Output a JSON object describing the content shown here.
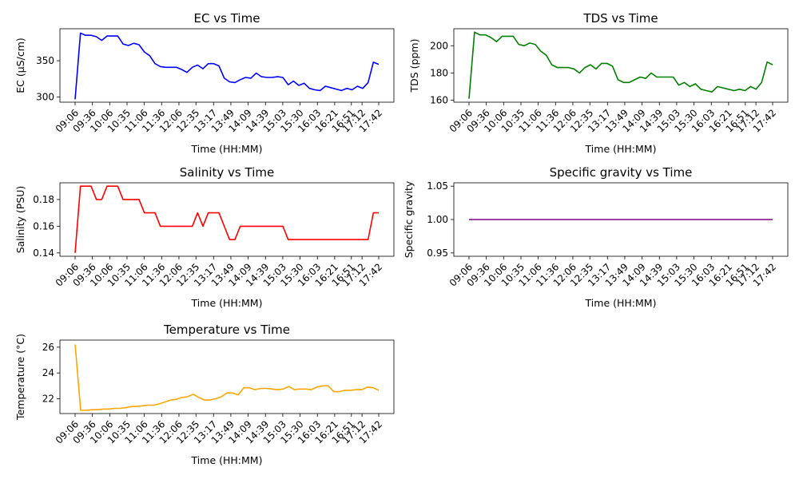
{
  "chart_data": [
    {
      "type": "line",
      "title": "EC vs Time",
      "xlabel": "Time (HH:MM)",
      "ylabel": "EC (µS/cm)",
      "color": "#0000ff",
      "ylim": [
        293,
        394
      ],
      "yticks": [
        300,
        350
      ],
      "series": [
        {
          "values": [
            297,
            388,
            385,
            385,
            383,
            378,
            384,
            384,
            384,
            373,
            371,
            374,
            372,
            362,
            357,
            346,
            342,
            341,
            341,
            341,
            338,
            334,
            341,
            344,
            339,
            346,
            346,
            343,
            326,
            321,
            320,
            324,
            327,
            326,
            333,
            328,
            327,
            327,
            328,
            327,
            317,
            322,
            316,
            319,
            312,
            310,
            309,
            315,
            313,
            311,
            309,
            312,
            310,
            315,
            312,
            320,
            348,
            345
          ]
        }
      ]
    },
    {
      "type": "line",
      "title": "TDS vs Time",
      "xlabel": "Time (HH:MM)",
      "ylabel": "TDS (ppm)",
      "color": "#008000",
      "ylim": [
        158.5,
        212.5
      ],
      "yticks": [
        160,
        180,
        200
      ],
      "series": [
        {
          "values": [
            161,
            210,
            208,
            208,
            206,
            203,
            207,
            207,
            207,
            201,
            200,
            202,
            201,
            196,
            193,
            186,
            184,
            184,
            184,
            183,
            180,
            184,
            186,
            183,
            187,
            187,
            185,
            175,
            173,
            173,
            175,
            177,
            176,
            180,
            177,
            177,
            177,
            177,
            171,
            173,
            170,
            172,
            168,
            167,
            166,
            170,
            169,
            168,
            167,
            168,
            167,
            170,
            168,
            173,
            188,
            186
          ]
        }
      ]
    },
    {
      "type": "line",
      "title": "Salinity vs Time",
      "xlabel": "Time (HH:MM)",
      "ylabel": "Salinity (PSU)",
      "color": "#ff0000",
      "ylim": [
        0.1375,
        0.1925
      ],
      "yticks": [
        0.14,
        0.16,
        0.18
      ],
      "series": [
        {
          "values": [
            0.14,
            0.19,
            0.19,
            0.19,
            0.18,
            0.18,
            0.19,
            0.19,
            0.19,
            0.18,
            0.18,
            0.18,
            0.18,
            0.17,
            0.17,
            0.17,
            0.16,
            0.16,
            0.16,
            0.16,
            0.16,
            0.16,
            0.16,
            0.17,
            0.16,
            0.17,
            0.17,
            0.17,
            0.16,
            0.15,
            0.15,
            0.16,
            0.16,
            0.16,
            0.16,
            0.16,
            0.16,
            0.16,
            0.16,
            0.16,
            0.15,
            0.15,
            0.15,
            0.15,
            0.15,
            0.15,
            0.15,
            0.15,
            0.15,
            0.15,
            0.15,
            0.15,
            0.15,
            0.15,
            0.15,
            0.15,
            0.17,
            0.17
          ]
        }
      ]
    },
    {
      "type": "line",
      "title": "Specific gravity vs Time",
      "xlabel": "Time (HH:MM)",
      "ylabel": "Specific gravity",
      "color": "#800080",
      "ylim": [
        0.945,
        1.055
      ],
      "yticks": [
        0.95,
        1.0,
        1.05
      ],
      "series": [
        {
          "values": [
            1.0,
            1.0,
            1.0,
            1.0,
            1.0,
            1.0,
            1.0,
            1.0,
            1.0,
            1.0,
            1.0,
            1.0,
            1.0,
            1.0,
            1.0,
            1.0,
            1.0,
            1.0,
            1.0,
            1.0,
            1.0,
            1.0,
            1.0,
            1.0,
            1.0,
            1.0,
            1.0,
            1.0,
            1.0,
            1.0,
            1.0,
            1.0,
            1.0,
            1.0,
            1.0,
            1.0,
            1.0,
            1.0,
            1.0,
            1.0,
            1.0,
            1.0,
            1.0,
            1.0,
            1.0,
            1.0,
            1.0,
            1.0,
            1.0,
            1.0,
            1.0,
            1.0,
            1.0,
            1.0,
            1.0,
            1.0,
            1.0,
            1.0
          ]
        }
      ]
    },
    {
      "type": "line",
      "title": "Temperature vs Time",
      "xlabel": "Time (HH:MM)",
      "ylabel": "Temperature (°C)",
      "color": "#ffa500",
      "ylim": [
        20.85,
        26.55
      ],
      "yticks": [
        22,
        24,
        26
      ],
      "series": [
        {
          "values": [
            26.2,
            21.1,
            21.1,
            21.15,
            21.15,
            21.2,
            21.2,
            21.25,
            21.25,
            21.3,
            21.4,
            21.4,
            21.45,
            21.5,
            21.5,
            21.6,
            21.75,
            21.9,
            21.95,
            22.1,
            22.15,
            22.35,
            22.1,
            21.9,
            21.9,
            22.0,
            22.15,
            22.45,
            22.45,
            22.3,
            22.85,
            22.85,
            22.7,
            22.8,
            22.8,
            22.75,
            22.7,
            22.75,
            22.95,
            22.7,
            22.75,
            22.75,
            22.7,
            22.9,
            23.0,
            23.0,
            22.55,
            22.55,
            22.65,
            22.65,
            22.7,
            22.7,
            22.9,
            22.85,
            22.65
          ]
        }
      ]
    }
  ],
  "xticks": [
    "09:06",
    "09:36",
    "10:06",
    "10:35",
    "11:06",
    "11:36",
    "12:06",
    "12:35",
    "13:17",
    "13:49",
    "14:09",
    "14:39",
    "15:03",
    "15:30",
    "16:03",
    "16:21",
    "16:51",
    "17:12",
    "17:42"
  ]
}
